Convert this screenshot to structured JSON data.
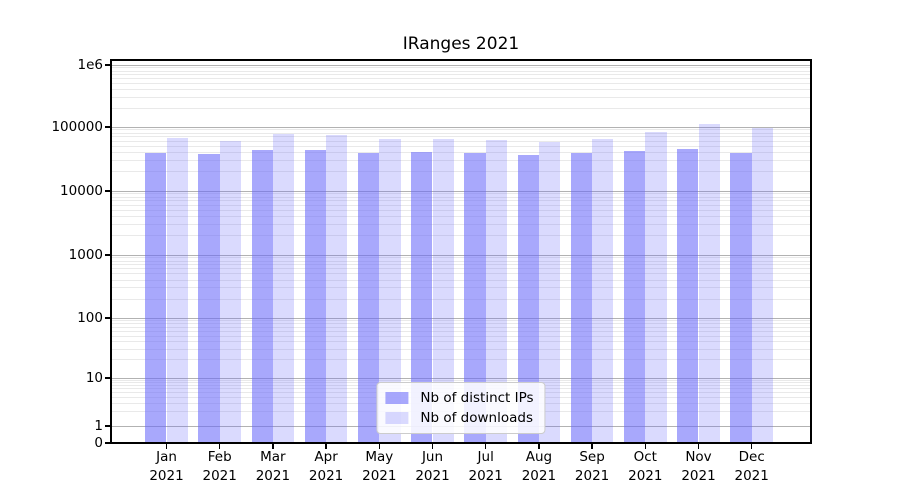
{
  "chart_data": {
    "type": "bar",
    "title": "IRanges 2021",
    "categories": [
      "Jan 2021",
      "Feb 2021",
      "Mar 2021",
      "Apr 2021",
      "May 2021",
      "Jun 2021",
      "Jul 2021",
      "Aug 2021",
      "Sep 2021",
      "Oct 2021",
      "Nov 2021",
      "Dec 2021"
    ],
    "series": [
      {
        "name": "Nb of distinct IPs",
        "color": "#6666fa",
        "opacity": 0.57,
        "values": [
          39000,
          38000,
          44000,
          44000,
          39000,
          41000,
          39000,
          37000,
          39000,
          42000,
          46000,
          39000
        ]
      },
      {
        "name": "Nb of downloads",
        "color": "#6666fa",
        "opacity": 0.24,
        "values": [
          68000,
          60000,
          78000,
          75000,
          65000,
          66000,
          62000,
          58000,
          65000,
          85000,
          111000,
          98000
        ]
      }
    ],
    "yscale": "symlog",
    "ylim": [
      0,
      1000000
    ],
    "y_ticks": [
      {
        "label": "0",
        "value": 0
      },
      {
        "label": "1",
        "value": 1
      },
      {
        "label": "10",
        "value": 10
      },
      {
        "label": "100",
        "value": 100
      },
      {
        "label": "1000",
        "value": 1000
      },
      {
        "label": "10000",
        "value": 10000
      },
      {
        "label": "100000",
        "value": 100000
      },
      {
        "label": "1e6",
        "value": 1000000
      }
    ],
    "grid": "major+minor",
    "legend_position": "lower center"
  }
}
